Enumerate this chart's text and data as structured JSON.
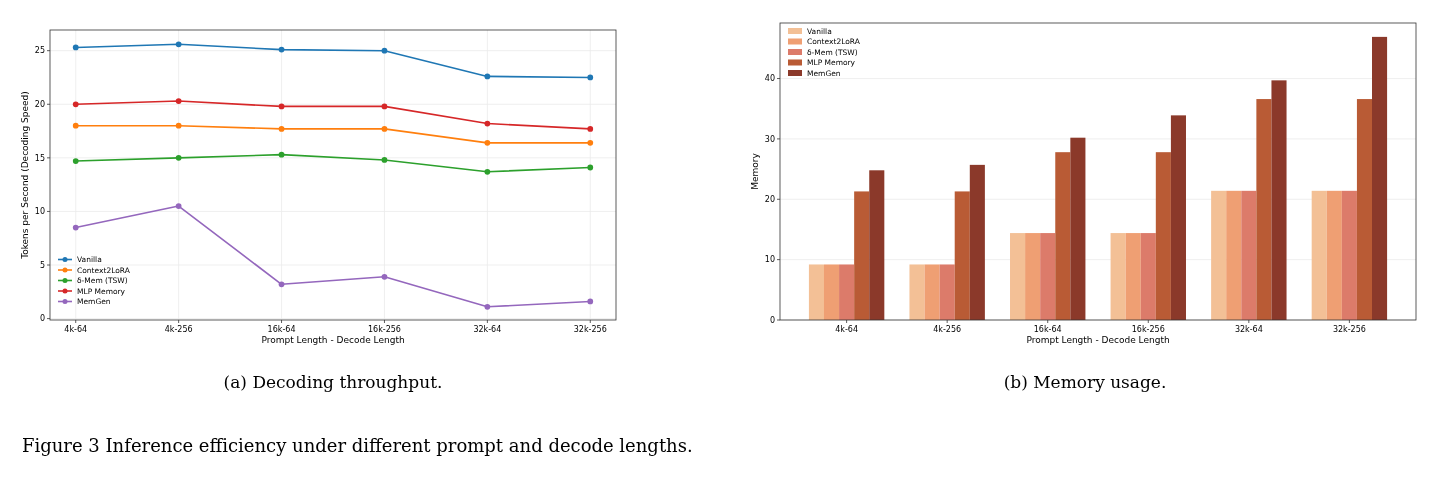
{
  "chart_data": [
    {
      "type": "line",
      "xlabel": "Prompt Length - Decode Length",
      "ylabel": "Tokens per Second (Decoding Speed)",
      "categories": [
        "4k-64",
        "4k-256",
        "16k-64",
        "16k-256",
        "32k-64",
        "32k-256"
      ],
      "ylim": [
        -0.13,
        26.93
      ],
      "yticks": [
        0,
        5,
        10,
        15,
        20,
        25
      ],
      "grid": true,
      "legend": "bottom left",
      "marker": "circle",
      "line_style": "solid",
      "series": [
        {
          "name": "Vanilla",
          "color": "#1f77b4",
          "values": [
            25.3,
            25.6,
            25.1,
            25.0,
            22.6,
            22.5
          ]
        },
        {
          "name": "Context2LoRA",
          "color": "#ff7f0e",
          "values": [
            18.0,
            18.0,
            17.7,
            17.7,
            16.4,
            16.4
          ]
        },
        {
          "name": "δ-Mem (TSW)",
          "color": "#2ca02c",
          "values": [
            14.7,
            15.0,
            15.3,
            14.8,
            13.7,
            14.1
          ]
        },
        {
          "name": "MLP Memory",
          "color": "#d62728",
          "values": [
            20.0,
            20.3,
            19.8,
            19.8,
            18.2,
            17.7
          ]
        },
        {
          "name": "MemGen",
          "color": "#9467bd",
          "values": [
            8.5,
            10.5,
            3.2,
            3.9,
            1.1,
            1.6
          ]
        }
      ],
      "annotations": [
        "(a) Decoding throughput.",
        "Figure 3 Inference efficiency under different prompt and decode lengths."
      ]
    },
    {
      "type": "bar",
      "xlabel": "Prompt Length - Decode Length",
      "ylabel": "Memory",
      "categories": [
        "4k-64",
        "4k-256",
        "16k-64",
        "16k-256",
        "32k-64",
        "32k-256"
      ],
      "ylim": [
        0,
        49.2
      ],
      "yticks": [
        0,
        10,
        20,
        30,
        40
      ],
      "grid": "y",
      "legend": "top left",
      "series": [
        {
          "name": "Vanilla",
          "color": "#f3c096",
          "values": [
            9.2,
            9.2,
            14.4,
            14.4,
            21.4,
            21.4
          ]
        },
        {
          "name": "Context2LoRA",
          "color": "#ef9f73",
          "values": [
            9.2,
            9.2,
            14.4,
            14.4,
            21.4,
            21.4
          ]
        },
        {
          "name": "δ-Mem (TSW)",
          "color": "#dc7b6a",
          "values": [
            9.2,
            9.2,
            14.4,
            14.4,
            21.4,
            21.4
          ]
        },
        {
          "name": "MLP Memory",
          "color": "#b95b35",
          "values": [
            21.3,
            21.3,
            27.8,
            27.8,
            36.6,
            36.6
          ]
        },
        {
          "name": "MemGen",
          "color": "#8b392a",
          "values": [
            24.8,
            25.7,
            30.2,
            33.9,
            39.7,
            46.9
          ]
        }
      ],
      "annotations": [
        "(b) Memory usage."
      ]
    }
  ]
}
